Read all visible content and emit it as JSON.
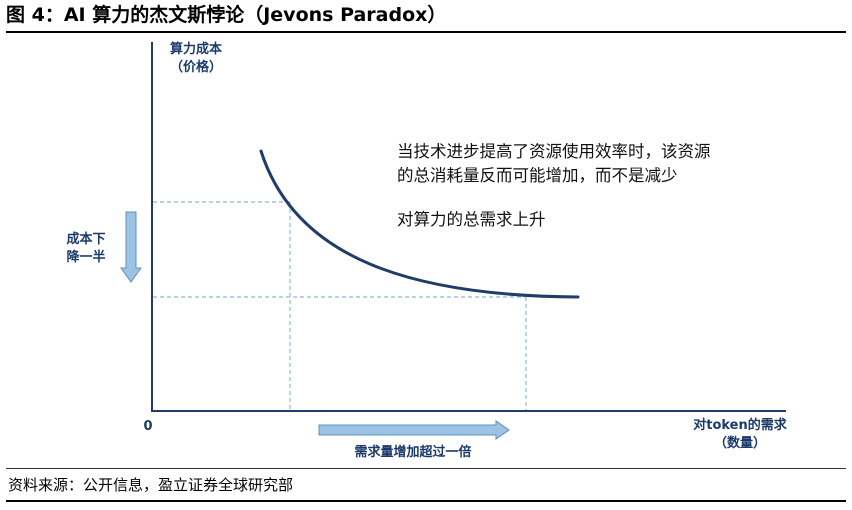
{
  "title": "图 4：AI 算力的杰文斯悖论（Jevons Paradox）",
  "source": "资料来源：公开信息，盈立证券全球研究部",
  "diagram": {
    "y_axis_label_line1": "算力成本",
    "y_axis_label_line2": "（价格）",
    "x_axis_label_line1": "对token的需求",
    "x_axis_label_line2": "（数量）",
    "origin_label": "0",
    "cost_arrow_line1": "成本下",
    "cost_arrow_line2": "降一半",
    "demand_arrow_label": "需求量增加超过一倍",
    "annotation_line1": "当技术进步提高了资源使用效率时，该资源",
    "annotation_line2": "的总消耗量反而可能增加，而不是减少",
    "annotation_line3": "对算力的总需求上升",
    "colors": {
      "curve": "#1f3d68",
      "axis": "#1f3d68",
      "dashed": "#8fb6d8",
      "arrow_fill": "#9cc3e4",
      "arrow_stroke": "#5f8fbf",
      "label": "#1c3a6a"
    }
  }
}
